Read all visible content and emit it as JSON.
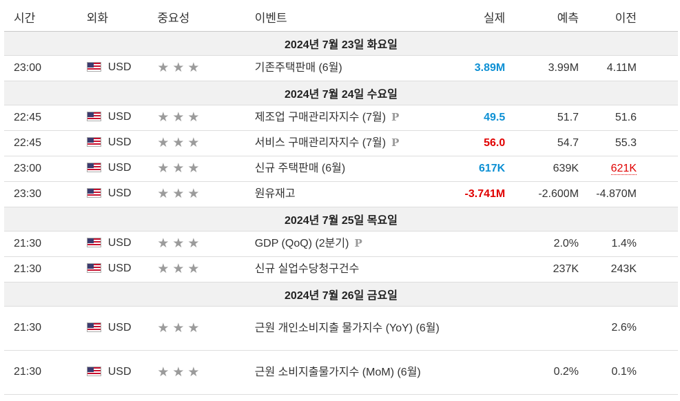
{
  "header": {
    "time": "시간",
    "currency": "외화",
    "importance": "중요성",
    "event": "이벤트",
    "actual": "실제",
    "forecast": "예측",
    "previous": "이전"
  },
  "importance_glyph": "★★★",
  "preliminary_glyph": "P",
  "colors": {
    "positive": "#0d90d4",
    "negative": "#e00000",
    "star": "#9b9b9b",
    "date_row_bg": "#f1f1f1"
  },
  "groups": [
    {
      "date": "2024년 7월 23일 화요일",
      "events": [
        {
          "time": "23:00",
          "currency": "USD",
          "event": "기존주택판매 (6월)",
          "actual": "3.89M",
          "forecast": "3.99M",
          "previous": "4.11M"
        }
      ]
    },
    {
      "date": "2024년 7월 24일 수요일",
      "events": [
        {
          "time": "22:45",
          "currency": "USD",
          "event": "제조업 구매관리자지수 (7월)",
          "actual": "49.5",
          "forecast": "51.7",
          "previous": "51.6"
        },
        {
          "time": "22:45",
          "currency": "USD",
          "event": "서비스 구매관리자지수 (7월)",
          "actual": "56.0",
          "forecast": "54.7",
          "previous": "55.3"
        },
        {
          "time": "23:00",
          "currency": "USD",
          "event": "신규 주택판매 (6월)",
          "actual": "617K",
          "forecast": "639K",
          "previous": "621K"
        },
        {
          "time": "23:30",
          "currency": "USD",
          "event": "원유재고",
          "actual": "-3.741M",
          "forecast": "-2.600M",
          "previous": "-4.870M"
        }
      ]
    },
    {
      "date": "2024년 7월 25일 목요일",
      "events": [
        {
          "time": "21:30",
          "currency": "USD",
          "event": "GDP (QoQ) (2분기)",
          "actual": "",
          "forecast": "2.0%",
          "previous": "1.4%"
        },
        {
          "time": "21:30",
          "currency": "USD",
          "event": "신규 실업수당청구건수",
          "actual": "",
          "forecast": "237K",
          "previous": "243K"
        }
      ]
    },
    {
      "date": "2024년 7월 26일 금요일",
      "events": [
        {
          "time": "21:30",
          "currency": "USD",
          "event": "근원 개인소비지출 물가지수 (YoY) (6월)",
          "actual": "",
          "forecast": "",
          "previous": "2.6%"
        },
        {
          "time": "21:30",
          "currency": "USD",
          "event": "근원 소비지출물가지수 (MoM) (6월)",
          "actual": "",
          "forecast": "0.2%",
          "previous": "0.1%"
        }
      ]
    }
  ]
}
